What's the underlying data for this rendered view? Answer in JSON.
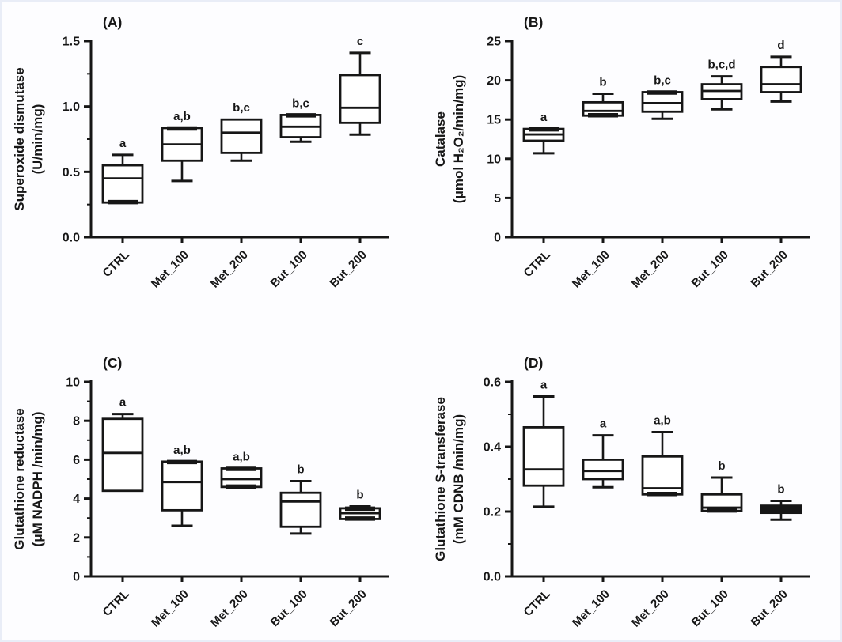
{
  "figure": {
    "background": "#fdfdff",
    "border_color": "#e9edf7",
    "ink_color": "#161616",
    "box_fill": "#ffffff"
  },
  "chart_data": [
    {
      "type": "box",
      "panel_label": "(A)",
      "ylabel_lines": [
        "Superoxide dismutase",
        "(U/min/mg)"
      ],
      "ylim": [
        0,
        1.5
      ],
      "ytick_values": [
        0,
        0.5,
        1,
        1.5
      ],
      "ytick_labels": [
        "0.0",
        "0.5",
        "1.0",
        "1.5"
      ],
      "minor_step": 0.25,
      "categories": [
        "CTRL",
        "Met_100",
        "Met_200",
        "But_100",
        "But_200"
      ],
      "boxes": [
        {
          "category": "CTRL",
          "whislo": null,
          "q1": 0.265,
          "med": 0.45,
          "q3": 0.55,
          "whishi": 0.63,
          "sig": "a",
          "thick_top": false,
          "thick_bottom": true,
          "solid": false
        },
        {
          "category": "Met_100",
          "whislo": 0.43,
          "q1": 0.585,
          "med": 0.71,
          "q3": 0.835,
          "whishi": null,
          "sig": "a,b",
          "thick_top": true,
          "thick_bottom": false,
          "solid": false
        },
        {
          "category": "Met_200",
          "whislo": 0.585,
          "q1": 0.645,
          "med": 0.8,
          "q3": 0.9,
          "whishi": null,
          "sig": "b,c",
          "thick_top": false,
          "thick_bottom": false,
          "solid": false
        },
        {
          "category": "But_100",
          "whislo": 0.73,
          "q1": 0.765,
          "med": 0.845,
          "q3": 0.935,
          "whishi": null,
          "sig": "b,c",
          "thick_top": true,
          "thick_bottom": false,
          "solid": false
        },
        {
          "category": "But_200",
          "whislo": 0.785,
          "q1": 0.875,
          "med": 0.99,
          "q3": 1.24,
          "whishi": 1.41,
          "sig": "c",
          "thick_top": false,
          "thick_bottom": false,
          "solid": false
        }
      ]
    },
    {
      "type": "box",
      "panel_label": "(B)",
      "ylabel_lines": [
        "Catalase",
        "(μmol H₂O₂/min/mg)"
      ],
      "ylim": [
        0,
        25
      ],
      "ytick_values": [
        0,
        5,
        10,
        15,
        20,
        25
      ],
      "ytick_labels": [
        "0",
        "5",
        "10",
        "15",
        "20",
        "25"
      ],
      "minor_step": null,
      "categories": [
        "CTRL",
        "Met_100",
        "Met_200",
        "But_100",
        "But_200"
      ],
      "boxes": [
        {
          "category": "CTRL",
          "whislo": 10.7,
          "q1": 12.3,
          "med": 13.1,
          "q3": 13.8,
          "whishi": null,
          "sig": "a",
          "thick_top": true,
          "thick_bottom": false,
          "solid": false
        },
        {
          "category": "Met_100",
          "whislo": null,
          "q1": 15.5,
          "med": 16.1,
          "q3": 17.2,
          "whishi": 18.3,
          "sig": "b",
          "thick_top": false,
          "thick_bottom": true,
          "solid": false
        },
        {
          "category": "Met_200",
          "whislo": 15.1,
          "q1": 16.0,
          "med": 17.1,
          "q3": 18.5,
          "whishi": null,
          "sig": "b,c",
          "thick_top": true,
          "thick_bottom": false,
          "solid": false
        },
        {
          "category": "But_100",
          "whislo": 16.3,
          "q1": 17.6,
          "med": 18.65,
          "q3": 19.5,
          "whishi": 20.5,
          "sig": "b,c,d",
          "thick_top": false,
          "thick_bottom": false,
          "solid": false
        },
        {
          "category": "But_200",
          "whislo": 17.3,
          "q1": 18.5,
          "med": 19.5,
          "q3": 21.7,
          "whishi": 23.0,
          "sig": "d",
          "thick_top": false,
          "thick_bottom": false,
          "solid": false
        }
      ]
    },
    {
      "type": "box",
      "panel_label": "(C)",
      "ylabel_lines": [
        "Glutathione reductase",
        "(μM NADPH /min/mg)"
      ],
      "ylim": [
        0,
        10
      ],
      "ytick_values": [
        0,
        2,
        4,
        6,
        8,
        10
      ],
      "ytick_labels": [
        "0",
        "2",
        "4",
        "6",
        "8",
        "10"
      ],
      "minor_step": 1,
      "categories": [
        "CTRL",
        "Met_100",
        "Met_200",
        "But_100",
        "But_200"
      ],
      "boxes": [
        {
          "category": "CTRL",
          "whislo": null,
          "q1": 4.4,
          "med": 6.35,
          "q3": 8.1,
          "whishi": 8.35,
          "sig": "a",
          "thick_top": false,
          "thick_bottom": false,
          "solid": false
        },
        {
          "category": "Met_100",
          "whislo": 2.6,
          "q1": 3.4,
          "med": 4.85,
          "q3": 5.9,
          "whishi": null,
          "sig": "a,b",
          "thick_top": true,
          "thick_bottom": false,
          "solid": false
        },
        {
          "category": "Met_200",
          "whislo": null,
          "q1": 4.6,
          "med": 5.0,
          "q3": 5.55,
          "whishi": null,
          "sig": "a,b",
          "thick_top": true,
          "thick_bottom": true,
          "solid": false
        },
        {
          "category": "But_100",
          "whislo": 2.2,
          "q1": 2.55,
          "med": 3.85,
          "q3": 4.3,
          "whishi": 4.9,
          "sig": "b",
          "thick_top": false,
          "thick_bottom": false,
          "solid": false
        },
        {
          "category": "But_200",
          "whislo": null,
          "q1": 2.95,
          "med": 3.25,
          "q3": 3.5,
          "whishi": 3.6,
          "sig": "b",
          "thick_top": true,
          "thick_bottom": true,
          "solid": false
        }
      ]
    },
    {
      "type": "box",
      "panel_label": "(D)",
      "ylabel_lines": [
        "Glutathione S-transferase",
        "(mM CDNB /min/mg)"
      ],
      "ylim": [
        0,
        0.6
      ],
      "ytick_values": [
        0,
        0.2,
        0.4,
        0.6
      ],
      "ytick_labels": [
        "0.0",
        "0.2",
        "0.4",
        "0.6"
      ],
      "minor_step": 0.1,
      "categories": [
        "CTRL",
        "Met_100",
        "Met_200",
        "But_100",
        "But_200"
      ],
      "boxes": [
        {
          "category": "CTRL",
          "whislo": 0.215,
          "q1": 0.28,
          "med": 0.33,
          "q3": 0.46,
          "whishi": 0.555,
          "sig": "a",
          "thick_top": false,
          "thick_bottom": false,
          "solid": false
        },
        {
          "category": "Met_100",
          "whislo": 0.275,
          "q1": 0.3,
          "med": 0.325,
          "q3": 0.36,
          "whishi": 0.435,
          "sig": "a",
          "thick_top": false,
          "thick_bottom": false,
          "solid": false
        },
        {
          "category": "Met_200",
          "whislo": null,
          "q1": 0.253,
          "med": 0.272,
          "q3": 0.37,
          "whishi": 0.445,
          "sig": "a,b",
          "thick_top": false,
          "thick_bottom": true,
          "solid": false
        },
        {
          "category": "But_100",
          "whislo": null,
          "q1": 0.202,
          "med": 0.212,
          "q3": 0.253,
          "whishi": 0.305,
          "sig": "b",
          "thick_top": false,
          "thick_bottom": true,
          "solid": false
        },
        {
          "category": "But_200",
          "whislo": 0.175,
          "q1": 0.196,
          "med": 0.207,
          "q3": 0.218,
          "whishi": 0.233,
          "sig": "b",
          "thick_top": false,
          "thick_bottom": false,
          "solid": true
        }
      ]
    }
  ]
}
